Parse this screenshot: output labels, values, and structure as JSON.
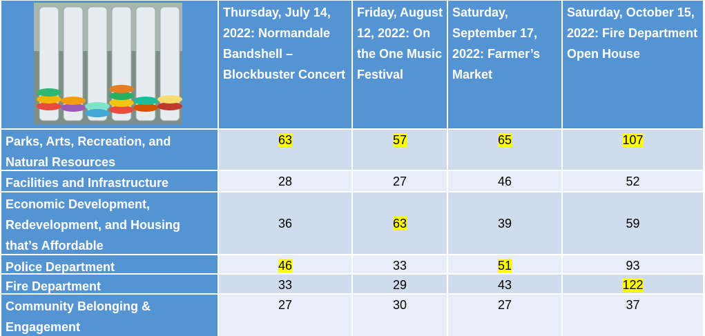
{
  "table": {
    "columns": [
      "Thursday, July 14, 2022: Normandale Bandshell – Blockbuster Concert",
      "Friday, August 12, 2022: On the One Music Festival",
      "Saturday, September 17, 2022: Farmer’s Market",
      "Saturday, October 15, 2022: Fire Department Open House"
    ],
    "rows": [
      {
        "label": "Parks, Arts, Recreation, and Natural Resources",
        "values": [
          63,
          57,
          65,
          107
        ],
        "highlight": [
          true,
          true,
          true,
          true
        ]
      },
      {
        "label": "Facilities and Infrastructure",
        "values": [
          28,
          27,
          46,
          52
        ],
        "highlight": [
          false,
          false,
          false,
          false
        ]
      },
      {
        "label": "Economic Development, Redevelopment, and Housing that’s Affordable",
        "values": [
          36,
          63,
          39,
          59
        ],
        "highlight": [
          false,
          true,
          false,
          false
        ]
      },
      {
        "label": "Police Department",
        "values": [
          46,
          33,
          51,
          93
        ],
        "highlight": [
          true,
          false,
          true,
          false
        ]
      },
      {
        "label": "Fire Department",
        "values": [
          33,
          29,
          43,
          122
        ],
        "highlight": [
          false,
          false,
          false,
          true
        ]
      },
      {
        "label": "Community Belonging & Engagement",
        "values": [
          27,
          30,
          27,
          37
        ],
        "highlight": [
          false,
          false,
          false,
          false
        ]
      }
    ]
  }
}
